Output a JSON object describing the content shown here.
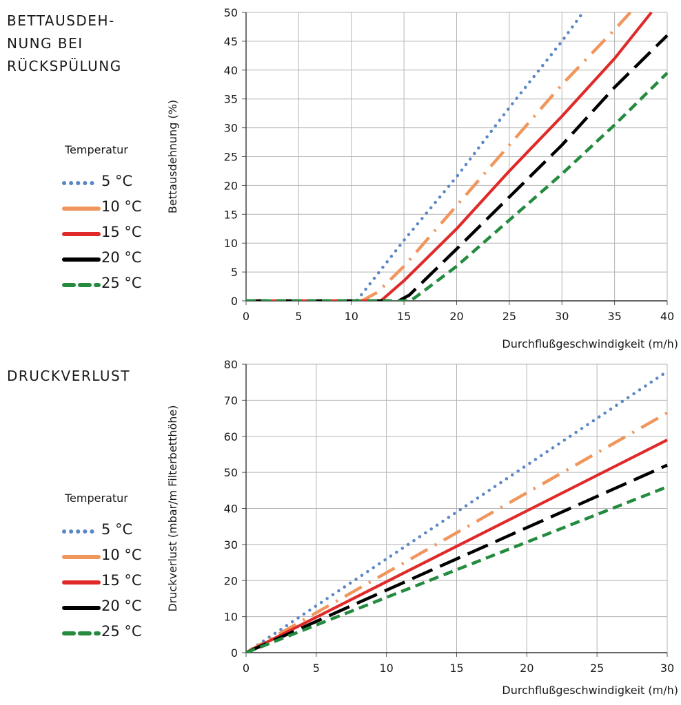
{
  "panels": [
    {
      "title": "BETTAUSDEH-\nNUNG BEI\nRÜCKSPÜLUNG",
      "legend_title": "Temperatur"
    },
    {
      "title": "DRUCKVERLUST",
      "legend_title": "Temperatur"
    }
  ],
  "series_styles": [
    {
      "name": "5 °C",
      "color": "#5b87c5",
      "dash": "dotted"
    },
    {
      "name": "10 °C",
      "color": "#f0965c",
      "dash": "dash-dot"
    },
    {
      "name": "15 °C",
      "color": "#e02a2a",
      "dash": "solid"
    },
    {
      "name": "20 °C",
      "color": "#000000",
      "dash": "long-dash"
    },
    {
      "name": "25 °C",
      "color": "#238a3e",
      "dash": "dashed"
    }
  ],
  "chart_data": [
    {
      "type": "line",
      "title": "",
      "xlabel": "Durchflußgeschwindigkeit (m/h)",
      "ylabel": "Bettausdehnung (%)",
      "xlim": [
        0,
        40
      ],
      "ylim": [
        0,
        50
      ],
      "xticks": [
        "0",
        "5",
        "10",
        "15",
        "20",
        "25",
        "30",
        "35",
        "40"
      ],
      "yticks": [
        "0",
        "5",
        "10",
        "15",
        "20",
        "25",
        "30",
        "35",
        "40",
        "45",
        "50"
      ],
      "grid": true,
      "series": [
        {
          "name": "5 °C",
          "points": [
            [
              0,
              0
            ],
            [
              10.5,
              0
            ],
            [
              15,
              10.5
            ],
            [
              20,
              21.5
            ],
            [
              25,
              33.5
            ],
            [
              30,
              45
            ],
            [
              32,
              50
            ]
          ]
        },
        {
          "name": "10 °C",
          "points": [
            [
              0,
              0
            ],
            [
              11,
              0
            ],
            [
              12.5,
              1.5
            ],
            [
              15,
              6
            ],
            [
              20,
              16.5
            ],
            [
              25,
              27
            ],
            [
              30,
              37.5
            ],
            [
              35,
              47
            ],
            [
              36.5,
              50
            ]
          ]
        },
        {
          "name": "15 °C",
          "points": [
            [
              0,
              0
            ],
            [
              12.8,
              0
            ],
            [
              15,
              3.5
            ],
            [
              20,
              12.5
            ],
            [
              25,
              22.5
            ],
            [
              30,
              32
            ],
            [
              35,
              42
            ],
            [
              38.5,
              50
            ]
          ]
        },
        {
          "name": "20 °C",
          "points": [
            [
              0,
              0
            ],
            [
              14.5,
              0
            ],
            [
              15.5,
              1
            ],
            [
              20,
              9
            ],
            [
              25,
              18
            ],
            [
              30,
              27
            ],
            [
              35,
              37
            ],
            [
              40,
              46
            ]
          ]
        },
        {
          "name": "25 °C",
          "points": [
            [
              0,
              0
            ],
            [
              15.5,
              0
            ],
            [
              16,
              0.5
            ],
            [
              20,
              6
            ],
            [
              25,
              14
            ],
            [
              30,
              22
            ],
            [
              35,
              30.5
            ],
            [
              40,
              39.5
            ]
          ]
        }
      ]
    },
    {
      "type": "line",
      "title": "",
      "xlabel": "Durchflußgeschwindigkeit (m/h)",
      "ylabel": "Druckverlust  (mbar/m Filterbetthöhe)",
      "xlim": [
        0,
        30
      ],
      "ylim": [
        0,
        80
      ],
      "xticks": [
        "0",
        "5",
        "10",
        "15",
        "20",
        "25",
        "30"
      ],
      "yticks": [
        "0",
        "10",
        "20",
        "30",
        "40",
        "50",
        "60",
        "70",
        "80"
      ],
      "grid": true,
      "series": [
        {
          "name": "5 °C",
          "points": [
            [
              0,
              0
            ],
            [
              30,
              78
            ]
          ]
        },
        {
          "name": "10 °C",
          "points": [
            [
              0,
              0
            ],
            [
              30,
              66.5
            ]
          ]
        },
        {
          "name": "15 °C",
          "points": [
            [
              0,
              0
            ],
            [
              30,
              59
            ]
          ]
        },
        {
          "name": "20 °C",
          "points": [
            [
              0,
              0
            ],
            [
              30,
              52
            ]
          ]
        },
        {
          "name": "25 °C",
          "points": [
            [
              0,
              0
            ],
            [
              30,
              46
            ]
          ]
        }
      ]
    }
  ]
}
